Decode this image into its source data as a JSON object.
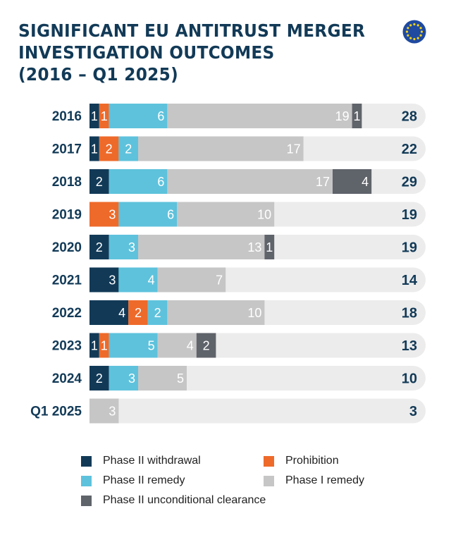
{
  "title_lines": [
    "SIGNIFICANT EU ANTITRUST MERGER",
    "INVESTIGATION OUTCOMES",
    "(2016 – Q1 2025)"
  ],
  "colors": {
    "phase2_withdrawal": "#123a57",
    "prohibition": "#ee6a2a",
    "phase2_remedy": "#5ec2dc",
    "phase1_remedy": "#c6c6c6",
    "phase2_unconditional": "#5f636a",
    "track": "#ececec",
    "text_dark": "#123a57"
  },
  "legend": {
    "phase2_withdrawal": "Phase II withdrawal",
    "prohibition": "Prohibition",
    "phase2_remedy": "Phase II remedy",
    "phase1_remedy": "Phase I remedy",
    "phase2_unconditional": "Phase II unconditional clearance"
  },
  "chart_data": {
    "type": "bar",
    "orientation": "horizontal",
    "stacked": true,
    "title": "SIGNIFICANT EU ANTITRUST MERGER INVESTIGATION OUTCOMES (2016 – Q1 2025)",
    "xlabel": "",
    "ylabel": "",
    "xlim": [
      0,
      34
    ],
    "grid": false,
    "legend_position": "bottom",
    "categories": [
      "2016",
      "2017",
      "2018",
      "2019",
      "2020",
      "2021",
      "2022",
      "2023",
      "2024",
      "Q1 2025"
    ],
    "series": [
      {
        "key": "phase2_withdrawal",
        "name": "Phase II withdrawal",
        "values": [
          1,
          1,
          2,
          0,
          2,
          3,
          4,
          1,
          2,
          0
        ]
      },
      {
        "key": "prohibition",
        "name": "Prohibition",
        "values": [
          1,
          2,
          0,
          3,
          0,
          0,
          2,
          1,
          0,
          0
        ]
      },
      {
        "key": "phase2_remedy",
        "name": "Phase II remedy",
        "values": [
          6,
          2,
          6,
          6,
          3,
          4,
          2,
          5,
          3,
          0
        ]
      },
      {
        "key": "phase1_remedy",
        "name": "Phase I remedy",
        "values": [
          19,
          17,
          17,
          10,
          13,
          7,
          10,
          4,
          5,
          3
        ]
      },
      {
        "key": "phase2_unconditional",
        "name": "Phase II unconditional clearance",
        "values": [
          1,
          0,
          4,
          0,
          1,
          0,
          0,
          2,
          0,
          0
        ]
      }
    ],
    "totals": [
      28,
      22,
      29,
      19,
      19,
      14,
      18,
      13,
      10,
      3
    ]
  }
}
